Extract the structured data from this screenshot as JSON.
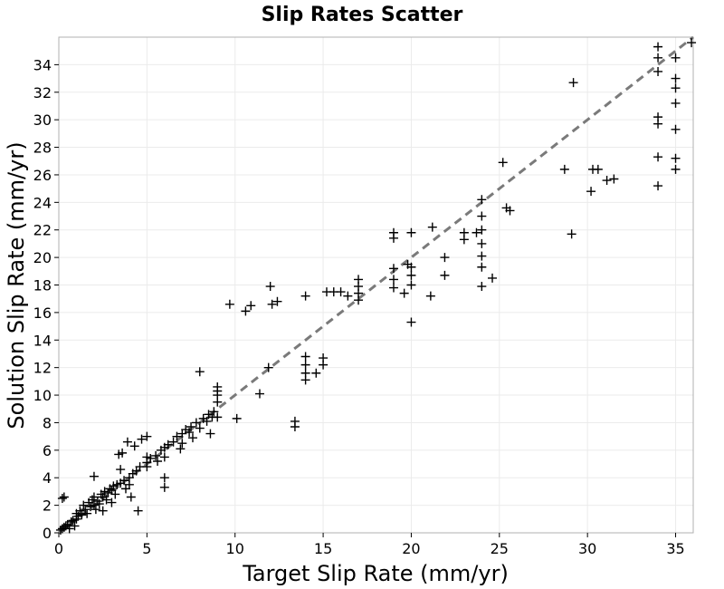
{
  "chart_data": {
    "type": "scatter",
    "title": "Slip Rates Scatter",
    "xlabel": "Target Slip Rate (mm/yr)",
    "ylabel": "Solution Slip Rate (mm/yr)",
    "xlim": [
      0,
      36
    ],
    "ylim": [
      0,
      36
    ],
    "xticks": [
      0,
      5,
      10,
      15,
      20,
      25,
      30,
      35
    ],
    "yticks": [
      0,
      2,
      4,
      6,
      8,
      10,
      12,
      14,
      16,
      18,
      20,
      22,
      24,
      26,
      28,
      30,
      32,
      34
    ],
    "grid": true,
    "marker": "+",
    "marker_color": "#000000",
    "reference_line": {
      "x": [
        0,
        36
      ],
      "y": [
        0,
        36
      ],
      "style": "dashed",
      "color": "#7a7a7a"
    },
    "series": [
      {
        "name": "slip rates",
        "points": [
          [
            0.1,
            0.2
          ],
          [
            0.2,
            0.3
          ],
          [
            0.3,
            0.4
          ],
          [
            0.3,
            2.6
          ],
          [
            0.2,
            2.5
          ],
          [
            0.4,
            0.5
          ],
          [
            0.5,
            0.6
          ],
          [
            0.6,
            0.3
          ],
          [
            0.7,
            0.8
          ],
          [
            0.8,
            0.9
          ],
          [
            0.9,
            0.5
          ],
          [
            1.0,
            1.0
          ],
          [
            1.0,
            1.4
          ],
          [
            1.1,
            1.2
          ],
          [
            1.2,
            1.6
          ],
          [
            1.3,
            1.3
          ],
          [
            1.4,
            2.0
          ],
          [
            1.5,
            1.7
          ],
          [
            1.6,
            1.4
          ],
          [
            1.7,
            2.2
          ],
          [
            1.8,
            1.9
          ],
          [
            1.9,
            2.4
          ],
          [
            2.0,
            2.0
          ],
          [
            2.0,
            2.6
          ],
          [
            2.0,
            4.1
          ],
          [
            2.1,
            1.7
          ],
          [
            2.2,
            2.3
          ],
          [
            2.3,
            2.1
          ],
          [
            2.4,
            2.8
          ],
          [
            2.5,
            1.6
          ],
          [
            2.5,
            2.6
          ],
          [
            2.6,
            3.0
          ],
          [
            2.7,
            2.4
          ],
          [
            2.8,
            2.9
          ],
          [
            2.9,
            3.2
          ],
          [
            3.0,
            3.1
          ],
          [
            3.0,
            2.2
          ],
          [
            3.1,
            3.4
          ],
          [
            3.2,
            2.8
          ],
          [
            3.3,
            3.5
          ],
          [
            3.4,
            5.7
          ],
          [
            3.5,
            3.6
          ],
          [
            3.5,
            4.6
          ],
          [
            3.6,
            5.8
          ],
          [
            3.7,
            3.8
          ],
          [
            3.8,
            3.2
          ],
          [
            3.9,
            6.6
          ],
          [
            4.0,
            4.0
          ],
          [
            4.0,
            3.5
          ],
          [
            4.1,
            2.6
          ],
          [
            4.2,
            4.3
          ],
          [
            4.3,
            6.3
          ],
          [
            4.4,
            4.5
          ],
          [
            4.5,
            1.6
          ],
          [
            4.6,
            4.8
          ],
          [
            4.7,
            6.8
          ],
          [
            5.0,
            5.1
          ],
          [
            5.0,
            4.8
          ],
          [
            5.0,
            7.0
          ],
          [
            5.0,
            5.5
          ],
          [
            5.2,
            5.4
          ],
          [
            5.5,
            5.6
          ],
          [
            5.6,
            5.2
          ],
          [
            5.8,
            6.0
          ],
          [
            6.0,
            5.5
          ],
          [
            6.0,
            6.2
          ],
          [
            6.0,
            4.0
          ],
          [
            6.0,
            3.3
          ],
          [
            6.2,
            6.4
          ],
          [
            6.5,
            6.6
          ],
          [
            6.7,
            7.0
          ],
          [
            6.9,
            6.1
          ],
          [
            7.0,
            7.2
          ],
          [
            7.0,
            6.5
          ],
          [
            7.2,
            7.5
          ],
          [
            7.4,
            7.3
          ],
          [
            7.5,
            7.7
          ],
          [
            7.6,
            6.9
          ],
          [
            7.8,
            8.0
          ],
          [
            8.0,
            11.7
          ],
          [
            8.0,
            7.6
          ],
          [
            8.2,
            8.3
          ],
          [
            8.4,
            8.1
          ],
          [
            8.5,
            8.6
          ],
          [
            8.6,
            7.2
          ],
          [
            8.7,
            8.4
          ],
          [
            8.8,
            8.8
          ],
          [
            9.0,
            8.4
          ],
          [
            9.0,
            9.5
          ],
          [
            9.0,
            10.0
          ],
          [
            9.0,
            10.3
          ],
          [
            9.0,
            10.6
          ],
          [
            9.7,
            16.6
          ],
          [
            10.1,
            8.3
          ],
          [
            10.6,
            16.1
          ],
          [
            10.9,
            16.5
          ],
          [
            11.4,
            10.1
          ],
          [
            11.9,
            12.0
          ],
          [
            12.0,
            17.9
          ],
          [
            12.1,
            16.6
          ],
          [
            12.4,
            16.8
          ],
          [
            13.4,
            7.7
          ],
          [
            13.4,
            8.1
          ],
          [
            14.0,
            11.1
          ],
          [
            14.0,
            11.6
          ],
          [
            14.0,
            12.2
          ],
          [
            14.0,
            12.8
          ],
          [
            14.0,
            17.2
          ],
          [
            14.6,
            11.6
          ],
          [
            15.0,
            12.2
          ],
          [
            15.0,
            12.7
          ],
          [
            15.2,
            17.5
          ],
          [
            15.6,
            17.5
          ],
          [
            16.0,
            17.5
          ],
          [
            16.4,
            17.2
          ],
          [
            17.0,
            16.9
          ],
          [
            17.0,
            17.4
          ],
          [
            17.0,
            17.9
          ],
          [
            17.0,
            18.4
          ],
          [
            19.0,
            17.8
          ],
          [
            19.0,
            18.4
          ],
          [
            19.0,
            19.2
          ],
          [
            19.0,
            21.4
          ],
          [
            19.0,
            21.8
          ],
          [
            19.6,
            17.4
          ],
          [
            19.8,
            19.5
          ],
          [
            20.0,
            15.3
          ],
          [
            20.0,
            18.0
          ],
          [
            20.0,
            18.7
          ],
          [
            20.0,
            19.3
          ],
          [
            20.0,
            21.8
          ],
          [
            21.1,
            17.2
          ],
          [
            21.2,
            22.2
          ],
          [
            21.9,
            18.7
          ],
          [
            21.9,
            20.0
          ],
          [
            23.0,
            21.3
          ],
          [
            23.0,
            21.8
          ],
          [
            23.7,
            21.8
          ],
          [
            24.0,
            17.9
          ],
          [
            24.0,
            19.3
          ],
          [
            24.0,
            20.1
          ],
          [
            24.0,
            21.0
          ],
          [
            24.0,
            22.0
          ],
          [
            24.0,
            23.0
          ],
          [
            24.0,
            24.2
          ],
          [
            24.6,
            18.5
          ],
          [
            25.2,
            26.9
          ],
          [
            25.4,
            23.6
          ],
          [
            25.6,
            23.4
          ],
          [
            28.7,
            26.4
          ],
          [
            29.1,
            21.7
          ],
          [
            29.2,
            32.7
          ],
          [
            30.2,
            24.8
          ],
          [
            30.3,
            26.4
          ],
          [
            30.6,
            26.4
          ],
          [
            31.1,
            25.6
          ],
          [
            31.5,
            25.7
          ],
          [
            34.0,
            25.2
          ],
          [
            34.0,
            27.3
          ],
          [
            34.0,
            29.7
          ],
          [
            34.0,
            30.2
          ],
          [
            34.0,
            33.5
          ],
          [
            34.0,
            34.5
          ],
          [
            34.0,
            35.3
          ],
          [
            35.0,
            26.4
          ],
          [
            35.0,
            27.2
          ],
          [
            35.0,
            29.3
          ],
          [
            35.0,
            31.2
          ],
          [
            35.0,
            32.3
          ],
          [
            35.0,
            33.0
          ],
          [
            35.0,
            34.5
          ],
          [
            35.9,
            35.6
          ]
        ]
      }
    ]
  }
}
